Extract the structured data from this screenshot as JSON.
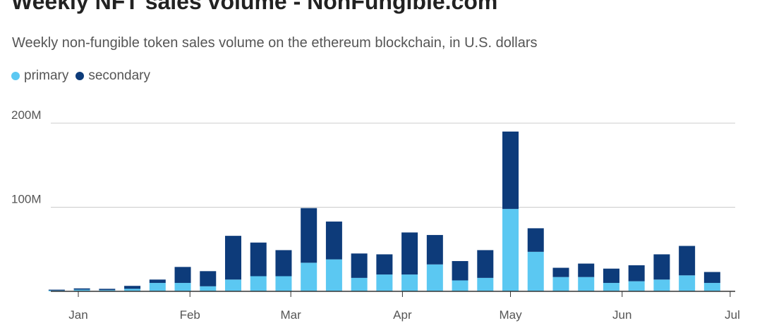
{
  "title": "Weekly NFT sales volume - NonFungible.com",
  "subtitle": "Weekly non-fungible token sales volume on the ethereum blockchain, in U.S. dollars",
  "colors": {
    "primary": "#5bc8f2",
    "secondary": "#0d3b7a",
    "grid": "#cccccc",
    "axis": "#333333"
  },
  "legend": [
    {
      "label": "primary",
      "color": "#5bc8f2"
    },
    {
      "label": "secondary",
      "color": "#0d3b7a"
    }
  ],
  "chart_data": {
    "type": "bar",
    "stacked": true,
    "title": "Weekly NFT sales volume - NonFungible.com",
    "subtitle": "Weekly non-fungible token sales volume on the ethereum blockchain, in U.S. dollars",
    "ylim": [
      0,
      200000000
    ],
    "yticks": [
      {
        "value": 100000000,
        "label": "100M"
      },
      {
        "value": 200000000,
        "label": "200M"
      }
    ],
    "xlim": [
      0,
      182
    ],
    "xticks": [
      {
        "x": 0,
        "label": "Jan"
      },
      {
        "x": 31,
        "label": "Feb"
      },
      {
        "x": 59,
        "label": "Mar"
      },
      {
        "x": 90,
        "label": "Apr"
      },
      {
        "x": 120,
        "label": "May"
      },
      {
        "x": 151,
        "label": "Jun"
      },
      {
        "x": 181,
        "label": "Jul"
      }
    ],
    "grid": true,
    "legend_position": "top-left",
    "x": [
      -6,
      1,
      8,
      15,
      22,
      29,
      36,
      43,
      50,
      57,
      64,
      71,
      78,
      85,
      92,
      99,
      106,
      113,
      120,
      127,
      134,
      141,
      148,
      155,
      162,
      169,
      176
    ],
    "series": [
      {
        "name": "primary",
        "values": [
          1000000,
          2000000,
          1500000,
          3000000,
          10000000,
          10000000,
          6000000,
          14000000,
          18000000,
          18000000,
          34000000,
          38000000,
          16000000,
          20000000,
          20000000,
          32000000,
          13000000,
          16000000,
          98000000,
          47000000,
          17000000,
          17000000,
          10000000,
          12000000,
          14000000,
          19000000,
          10000000
        ]
      },
      {
        "name": "secondary",
        "values": [
          1000000,
          1500000,
          1500000,
          3500000,
          4000000,
          19000000,
          18000000,
          52000000,
          40000000,
          31000000,
          65000000,
          45000000,
          29000000,
          24000000,
          50000000,
          35000000,
          23000000,
          33000000,
          92000000,
          28000000,
          11000000,
          16000000,
          17000000,
          19000000,
          30000000,
          35000000,
          13000000
        ]
      }
    ]
  }
}
